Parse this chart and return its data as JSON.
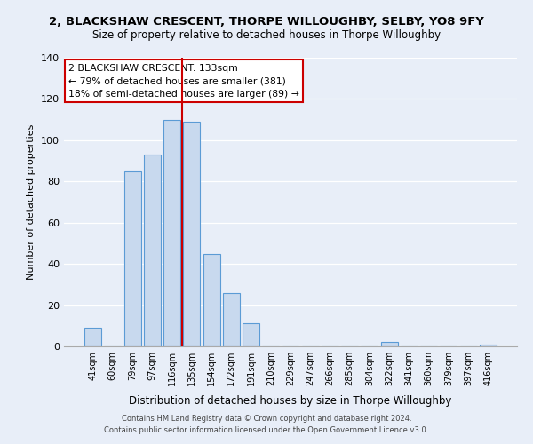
{
  "title1": "2, BLACKSHAW CRESCENT, THORPE WILLOUGHBY, SELBY, YO8 9FY",
  "title2": "Size of property relative to detached houses in Thorpe Willoughby",
  "xlabel": "Distribution of detached houses by size in Thorpe Willoughby",
  "ylabel": "Number of detached properties",
  "bar_labels": [
    "41sqm",
    "60sqm",
    "79sqm",
    "97sqm",
    "116sqm",
    "135sqm",
    "154sqm",
    "172sqm",
    "191sqm",
    "210sqm",
    "229sqm",
    "247sqm",
    "266sqm",
    "285sqm",
    "304sqm",
    "322sqm",
    "341sqm",
    "360sqm",
    "379sqm",
    "397sqm",
    "416sqm"
  ],
  "bar_values": [
    9,
    0,
    85,
    93,
    110,
    109,
    45,
    26,
    11,
    0,
    0,
    0,
    0,
    0,
    0,
    2,
    0,
    0,
    0,
    0,
    1
  ],
  "bar_color": "#c8d9ee",
  "bar_edge_color": "#5b9bd5",
  "vline_x": 5,
  "vline_color": "#cc0000",
  "ylim": [
    0,
    140
  ],
  "yticks": [
    0,
    20,
    40,
    60,
    80,
    100,
    120,
    140
  ],
  "annotation_title": "2 BLACKSHAW CRESCENT: 133sqm",
  "annotation_line1": "← 79% of detached houses are smaller (381)",
  "annotation_line2": "18% of semi-detached houses are larger (89) →",
  "annotation_box_color": "#ffffff",
  "annotation_box_edge": "#cc0000",
  "footer1": "Contains HM Land Registry data © Crown copyright and database right 2024.",
  "footer2": "Contains public sector information licensed under the Open Government Licence v3.0.",
  "bg_color": "#e8eef8"
}
